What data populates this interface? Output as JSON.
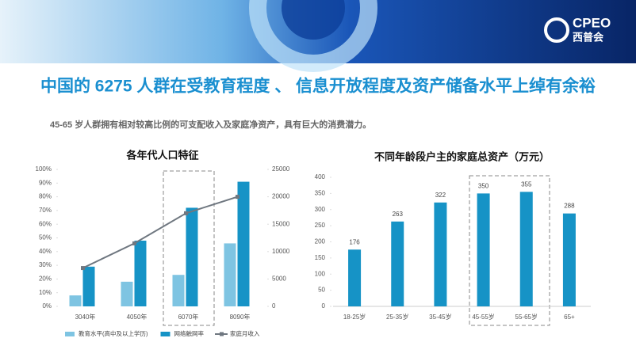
{
  "header": {
    "logo": "CPEO",
    "logo_sub": "西普会"
  },
  "title": "中国的 6275 人群在受教育程度 、 信息开放程度及资产储备水平上绰有余裕",
  "subtitle": "45-65 岁人群拥有相对较高比例的可支配收入及家庭净资产，具有巨大的消费潜力。",
  "chart_data": [
    {
      "type": "bar",
      "title": "各年代人口特征",
      "categories": [
        "3040年",
        "4050年",
        "6070年",
        "8090年"
      ],
      "series": [
        {
          "name": "教育水平(高中及以上学历)",
          "color": "#7ec4e2",
          "values": [
            8,
            18,
            23,
            46
          ]
        },
        {
          "name": "网络触网率",
          "color": "#1693c6",
          "values": [
            29,
            48,
            72,
            91
          ]
        },
        {
          "name": "家庭月收入",
          "color": "#6f7780",
          "type": "line",
          "axis": "y2",
          "values": [
            7000,
            11500,
            17000,
            20000
          ]
        }
      ],
      "ylim": [
        0,
        100
      ],
      "yticks": [
        {
          "value": 0,
          "label": "0%"
        },
        {
          "value": 10,
          "label": "10%"
        },
        {
          "value": 20,
          "label": "20%"
        },
        {
          "value": 30,
          "label": "30%"
        },
        {
          "value": 40,
          "label": "40%"
        },
        {
          "value": 50,
          "label": "50%"
        },
        {
          "value": 60,
          "label": "60%"
        },
        {
          "value": 70,
          "label": "70%"
        },
        {
          "value": 80,
          "label": "80%"
        },
        {
          "value": 90,
          "label": "90%"
        },
        {
          "value": 100,
          "label": "100%"
        }
      ],
      "y2lim": [
        0,
        25000
      ],
      "y2ticks": [
        0,
        5000,
        10000,
        15000,
        20000,
        25000
      ],
      "legend": "bottom"
    },
    {
      "type": "bar",
      "title": "不同年龄段户主的家庭总资产（万元）",
      "categories": [
        "18-25岁",
        "25-35岁",
        "35-45岁",
        "45-55岁",
        "55-65岁",
        "65+"
      ],
      "values": [
        176,
        263,
        322,
        350,
        355,
        288
      ],
      "color": "#1693c6",
      "ylim": [
        0,
        400
      ],
      "yticks": [
        0,
        50,
        100,
        150,
        200,
        250,
        300,
        350,
        400
      ]
    }
  ]
}
